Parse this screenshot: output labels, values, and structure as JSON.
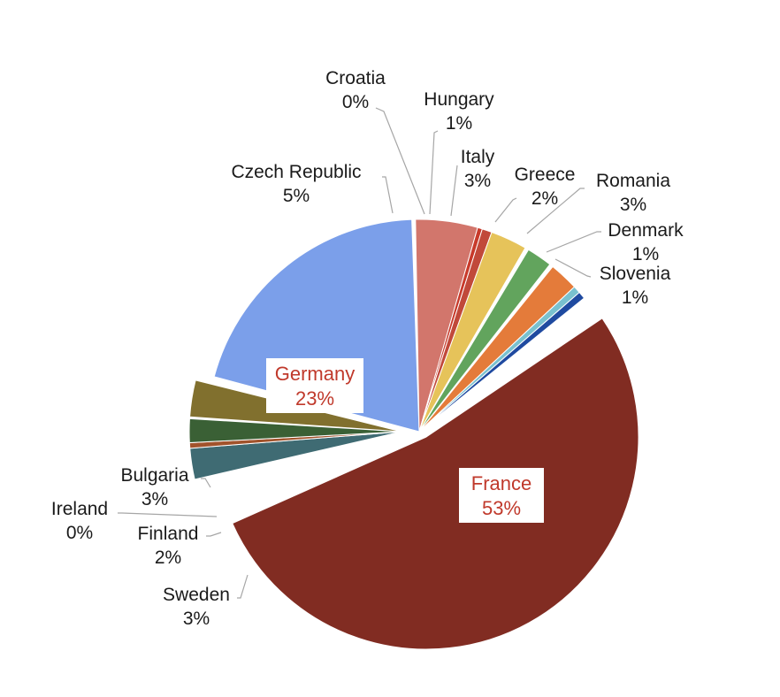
{
  "chart_data": {
    "type": "pie",
    "title": "",
    "slices": [
      {
        "label": "France",
        "value": 53,
        "display": "53%",
        "color": "#812c22"
      },
      {
        "label": "Germany",
        "value": 23,
        "display": "23%",
        "color": "#7b9fea"
      },
      {
        "label": "Czech Republic",
        "value": 5,
        "display": "5%",
        "color": "#d2766c"
      },
      {
        "label": "Croatia",
        "value": 0,
        "display": "0%",
        "color": "#c83a2b"
      },
      {
        "label": "Hungary",
        "value": 1,
        "display": "1%",
        "color": "#c1493a"
      },
      {
        "label": "Italy",
        "value": 3,
        "display": "3%",
        "color": "#e6c35a"
      },
      {
        "label": "Greece",
        "value": 2,
        "display": "2%",
        "color": "#62a45d"
      },
      {
        "label": "Romania",
        "value": 3,
        "display": "3%",
        "color": "#e47b3a"
      },
      {
        "label": "Denmark",
        "value": 1,
        "display": "1%",
        "color": "#79c1cf"
      },
      {
        "label": "Slovenia",
        "value": 1,
        "display": "1%",
        "color": "#1f4aa0"
      },
      {
        "label": "Sweden",
        "value": 3,
        "display": "3%",
        "color": "#81702e"
      },
      {
        "label": "Finland",
        "value": 2,
        "display": "2%",
        "color": "#3a6035"
      },
      {
        "label": "Ireland",
        "value": 0,
        "display": "0%",
        "color": "#a1532c"
      },
      {
        "label": "Bulgaria",
        "value": 3,
        "display": "3%",
        "color": "#3f6b73"
      }
    ],
    "highlight_label_color": "#c0392b"
  }
}
